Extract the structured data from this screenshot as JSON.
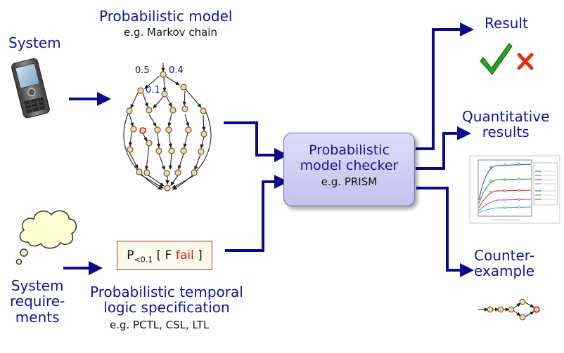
{
  "labels": {
    "system": "System",
    "model_title": "Probabilistic model",
    "model_example": "e.g. Markov chain",
    "result": "Result",
    "quantitative_line1": "Quantitative",
    "quantitative_line2": "results",
    "counter_line1": "Counter-",
    "counter_line2": "example",
    "requirements_line1": "System",
    "requirements_line2": "require-",
    "requirements_line3": "ments",
    "spec_line1": "Probabilistic temporal",
    "spec_line2": "logic specification",
    "spec_example": "e.g. PCTL, CSL, LTL"
  },
  "checker": {
    "line1": "Probabilistic",
    "line2": "model checker",
    "example": "e.g. PRISM"
  },
  "formula": {
    "p": "P",
    "bound": "<0.1",
    "open": "[ F",
    "fail": "fail",
    "close": "]"
  },
  "markov_probs": {
    "p1": "0.5",
    "p2": "0.4",
    "p3": "0.1"
  },
  "icons": {
    "phone": "mobile-phone-icon",
    "thought": "thought-cloud-icon",
    "check": "check-mark-icon",
    "cross": "cross-mark-icon",
    "plot": "results-plot-thumbnail",
    "counterexample": "counterexample-path-icon"
  },
  "colors": {
    "text_blue": "#13129a",
    "arrow": "#0a0a8a",
    "node_fill": "#f3d7a6",
    "node_stroke": "#7a5a20",
    "highlight": "#e01010",
    "check": "#2aa02a",
    "cross": "#e03010"
  }
}
